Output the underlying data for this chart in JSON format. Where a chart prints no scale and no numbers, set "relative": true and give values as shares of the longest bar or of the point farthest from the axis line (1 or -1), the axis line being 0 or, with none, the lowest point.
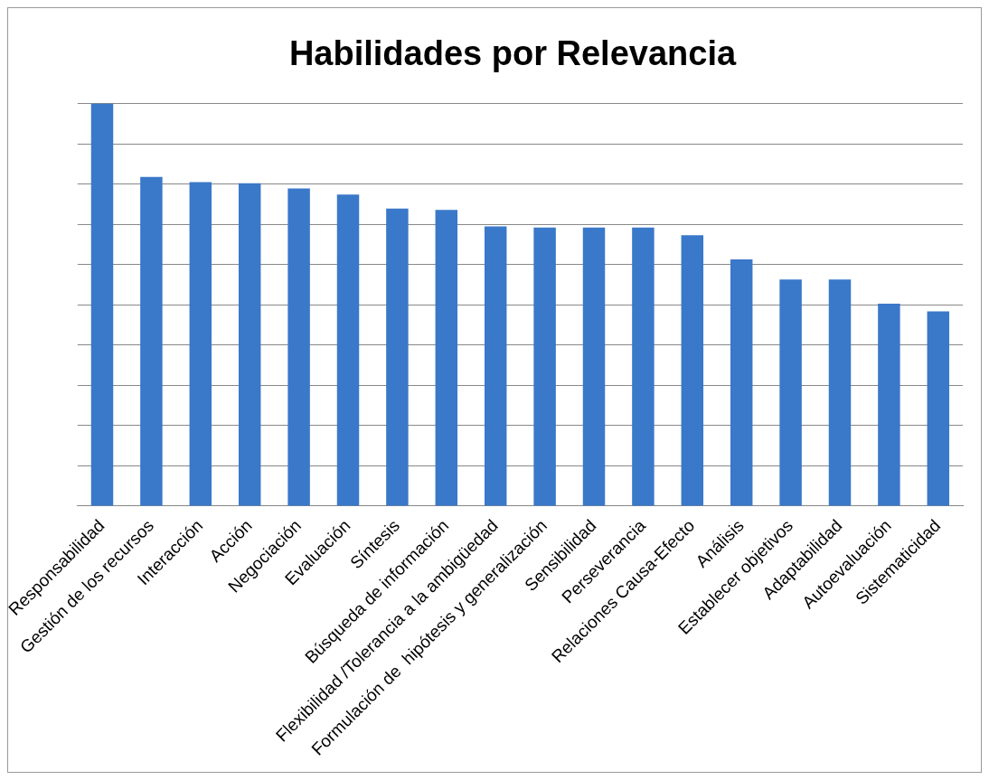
{
  "chart_data": {
    "type": "bar",
    "title": "Habilidades por Relevancia",
    "relative": true,
    "grid": "y",
    "color": "#3a78c9",
    "categories": [
      "Responsabilidad",
      "Gestión de los recursos",
      "Interacción",
      "Acción",
      "Negociación",
      "Evaluación",
      "Síntesis",
      "Búsqueda de información",
      "Flexibilidad /Tolerancia a la ambigüedad",
      "Formulación de  hipótesis y generalización",
      "Sensibilidad",
      "Perseverancia",
      "Relaciones Causa-Efecto",
      "Análisis",
      "Establecer objetivos",
      "Adaptabilidad",
      "Autoevaluación",
      "Sistematicidad"
    ],
    "values": [
      1,
      0.818,
      0.805,
      0.802,
      0.789,
      0.774,
      0.739,
      0.736,
      0.695,
      0.692,
      0.692,
      0.692,
      0.673,
      0.613,
      0.563,
      0.563,
      0.503,
      0.484
    ]
  }
}
